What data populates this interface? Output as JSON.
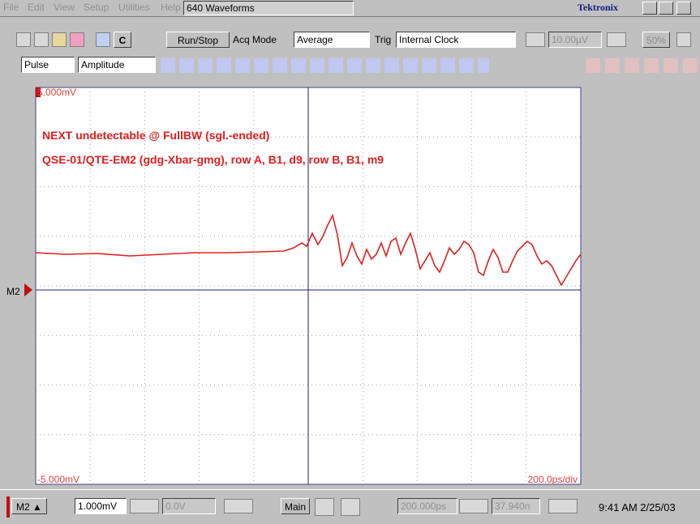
{
  "menu": {
    "items": [
      "File",
      "Edit",
      "View",
      "Setup",
      "Utilities",
      "Help"
    ],
    "title": "640 Waveforms",
    "brand": "Tektronix"
  },
  "toolbar": {
    "channel_button": "C",
    "run_stop": "Run/Stop",
    "acq_mode_label": "Acq Mode",
    "acq_mode": "Average",
    "trig_label": "Trig",
    "trig_source": "Internal Clock",
    "trig_level": "10.00µV",
    "trig_percent": "50%"
  },
  "measure_bar": {
    "category": "Pulse",
    "measurement": "Amplitude"
  },
  "screen": {
    "top_label": "5.000mV",
    "annotation_1": "NEXT undetectable @ FullBW (sgl.-ended)",
    "annotation_2": "QSE-01/QTE-EM2 (gdg-Xbar-gmg), row A, B1, d9, row B, B1, m9",
    "marker": "M2",
    "bottom_label": "-5.000mV",
    "timebase": "200.0ps/div"
  },
  "status": {
    "channel": "M2",
    "scale": "1.000mV",
    "offset": "0.0V",
    "timebase_mode": "Main",
    "horizontal_scale": "200.000ps",
    "position": "37.940n",
    "clock": "9:41 AM 2/25/03"
  }
}
